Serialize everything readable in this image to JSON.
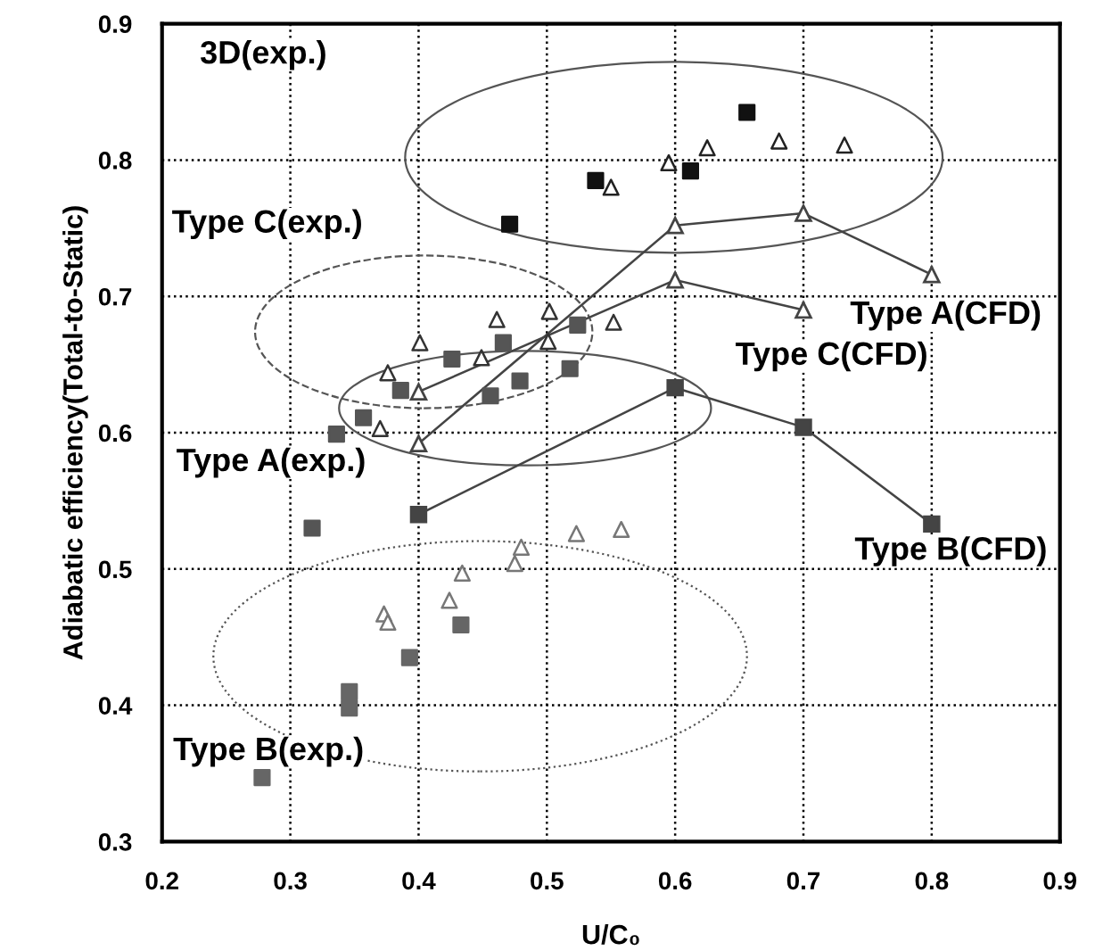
{
  "chart_data": {
    "type": "scatter",
    "xlabel": "U/C₀",
    "ylabel": "Adiabatic efficiency(Total-to-Static)",
    "xlim": [
      0.2,
      0.9
    ],
    "ylim": [
      0.3,
      0.9
    ],
    "xticks": [
      0.2,
      0.3,
      0.4,
      0.5,
      0.6,
      0.7,
      0.8,
      0.9
    ],
    "yticks": [
      0.3,
      0.4,
      0.5,
      0.6,
      0.7,
      0.8,
      0.9
    ],
    "grid": true,
    "series": [
      {
        "marker": "square",
        "color": "#111111",
        "x": [
          0.538,
          0.612,
          0.471,
          0.656
        ],
        "values": [
          0.785,
          0.792,
          0.753,
          0.835
        ]
      },
      {
        "marker": "triangle",
        "color": "#222222",
        "x": [
          0.55,
          0.595,
          0.625,
          0.681,
          0.732
        ],
        "values": [
          0.78,
          0.798,
          0.809,
          0.814,
          0.811
        ]
      },
      {
        "marker": "triangle",
        "color": "#333333",
        "x": [
          0.401,
          0.461,
          0.502,
          0.552,
          0.449,
          0.376,
          0.37,
          0.501
        ],
        "values": [
          0.666,
          0.683,
          0.689,
          0.681,
          0.655,
          0.644,
          0.603,
          0.667
        ]
      },
      {
        "marker": "square",
        "color": "#555555",
        "x": [
          0.336,
          0.357,
          0.386,
          0.426,
          0.466,
          0.456,
          0.479,
          0.518,
          0.524,
          0.317
        ],
        "values": [
          0.599,
          0.611,
          0.631,
          0.654,
          0.666,
          0.627,
          0.638,
          0.647,
          0.679,
          0.53
        ]
      },
      {
        "marker": "square",
        "color": "#666666",
        "x": [
          0.433,
          0.393,
          0.346,
          0.346,
          0.278
        ],
        "values": [
          0.459,
          0.435,
          0.41,
          0.398,
          0.347
        ]
      },
      {
        "marker": "triangle",
        "color": "#777777",
        "x": [
          0.434,
          0.424,
          0.373,
          0.376,
          0.475,
          0.48,
          0.523,
          0.558
        ],
        "values": [
          0.497,
          0.477,
          0.467,
          0.461,
          0.504,
          0.516,
          0.526,
          0.529
        ]
      },
      {
        "type": "line",
        "marker": "triangle",
        "color": "#444444",
        "x": [
          0.4,
          0.6,
          0.7,
          0.8
        ],
        "values": [
          0.592,
          0.752,
          0.761,
          0.716
        ]
      },
      {
        "type": "line",
        "marker": "triangle",
        "color": "#444444",
        "x": [
          0.4,
          0.6,
          0.7
        ],
        "values": [
          0.63,
          0.712,
          0.69
        ]
      },
      {
        "type": "line",
        "marker": "square",
        "color": "#444444",
        "x": [
          0.4,
          0.6,
          0.7,
          0.8
        ],
        "values": [
          0.54,
          0.633,
          0.604,
          0.533
        ]
      }
    ],
    "annotations": [
      "3D(exp.)",
      "Type C(exp.)",
      "Type A(exp.)",
      "Type B(exp.)",
      "Type A(CFD)",
      "Type C(CFD)",
      "Type B(CFD)"
    ]
  }
}
